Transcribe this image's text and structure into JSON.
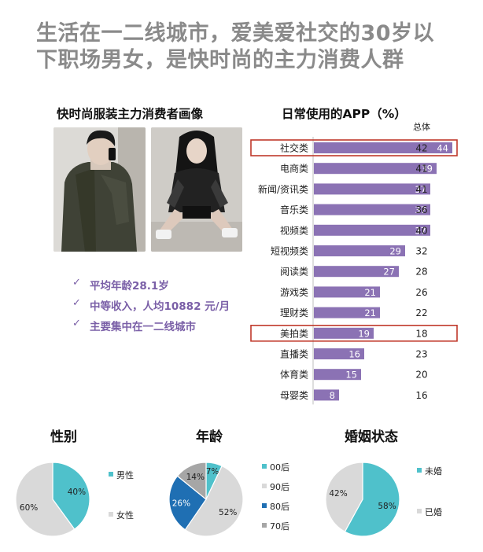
{
  "headline": {
    "line1": "生活在一二线城市，爱美爱社交的30岁以",
    "line2": "下职场男女，是快时尚的主力消费人群"
  },
  "left_panel": {
    "subtitle": "快时尚服装主力消费者画像",
    "bullets": [
      {
        "icon": "check-icon",
        "text": "平均年龄28.1岁"
      },
      {
        "icon": "check-icon",
        "text": "中等收入，人均10882 元/月"
      },
      {
        "icon": "check-icon",
        "text": "主要集中在一二线城市"
      }
    ]
  },
  "colors": {
    "bar": "#8b72b4",
    "highlight_border": "#c0392b",
    "teal": "#4fc1cb",
    "light_gray": "#d9d9d9",
    "mid_gray": "#a6a6a6",
    "navy": "#1f6fb3",
    "bullet_purple": "#7a5fa7"
  },
  "chart_data": [
    {
      "type": "bar",
      "orientation": "horizontal",
      "title": "日常使用的APP（%）",
      "column_header": "总体",
      "categories": [
        "社交类",
        "电商类",
        "新闻/资讯类",
        "音乐类",
        "视频类",
        "短视频类",
        "阅读类",
        "游戏类",
        "理财类",
        "美拍类",
        "直播类",
        "体育类",
        "母婴类"
      ],
      "values": [
        44,
        39,
        37,
        37,
        37,
        29,
        27,
        21,
        21,
        19,
        16,
        15,
        8
      ],
      "overall": [
        42,
        41,
        41,
        36,
        40,
        32,
        28,
        26,
        22,
        18,
        23,
        20,
        16
      ],
      "highlighted": [
        "社交类",
        "美拍类"
      ]
    },
    {
      "type": "pie",
      "title": "性别",
      "series": [
        {
          "name": "男性",
          "value": 40,
          "color": "#4fc1cb"
        },
        {
          "name": "女性",
          "value": 60,
          "color": "#d9d9d9"
        }
      ]
    },
    {
      "type": "pie",
      "title": "年龄",
      "series": [
        {
          "name": "00后",
          "value": 7,
          "color": "#4fc1cb"
        },
        {
          "name": "90后",
          "value": 52,
          "color": "#d9d9d9"
        },
        {
          "name": "80后",
          "value": 26,
          "color": "#1f6fb3"
        },
        {
          "name": "70后",
          "value": 14,
          "color": "#a6a6a6"
        }
      ]
    },
    {
      "type": "pie",
      "title": "婚姻状态",
      "series": [
        {
          "name": "未婚",
          "value": 58,
          "color": "#4fc1cb"
        },
        {
          "name": "已婚",
          "value": 42,
          "color": "#d9d9d9"
        }
      ]
    }
  ]
}
